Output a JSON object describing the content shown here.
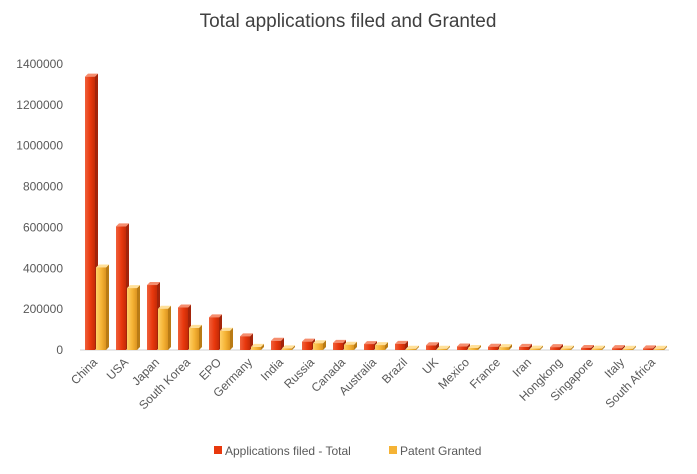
{
  "chart_data": {
    "type": "bar",
    "title": "Total applications filed and Granted",
    "xlabel": "",
    "ylabel": "",
    "ylim": [
      0,
      1400000
    ],
    "yticks": [
      0,
      200000,
      400000,
      600000,
      800000,
      1000000,
      1200000,
      1400000
    ],
    "grid": false,
    "legend_position": "bottom",
    "categories": [
      "China",
      "USA",
      "Japan",
      "South Korea",
      "EPO",
      "Germany",
      "India",
      "Russia",
      "Canada",
      "Australia",
      "Brazil",
      "UK",
      "Mexico",
      "France",
      "Iran",
      "Hongkong",
      "Singapore",
      "Italy",
      "South Africa"
    ],
    "series": [
      {
        "name": "Applications filed - Total",
        "color": "#e8380d",
        "values": [
          1338000,
          605000,
          318000,
          208000,
          160000,
          67000,
          45000,
          41000,
          35000,
          29000,
          30000,
          23000,
          17000,
          16000,
          15000,
          14000,
          10000,
          9000,
          8000
        ]
      },
      {
        "name": "Patent Granted",
        "color": "#f5b335",
        "values": [
          404000,
          303000,
          202000,
          108000,
          94000,
          15000,
          8000,
          33000,
          26000,
          24000,
          6000,
          6000,
          10000,
          14000,
          7000,
          7000,
          7000,
          6000,
          6000
        ]
      }
    ]
  }
}
